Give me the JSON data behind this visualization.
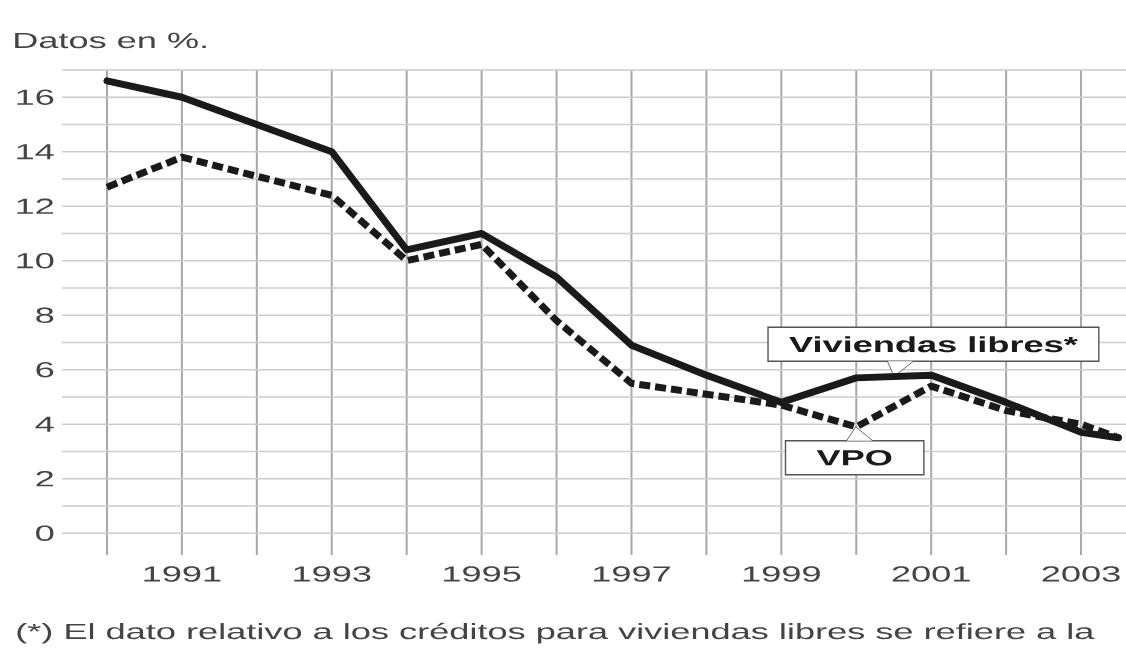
{
  "chart_data": {
    "type": "line",
    "ylabel": "Datos en %.",
    "x": [
      1990,
      1991,
      1992,
      1993,
      1994,
      1995,
      1996,
      1997,
      1998,
      1999,
      2000,
      2001,
      2002,
      2003,
      2003.5
    ],
    "series": [
      {
        "name": "Viviendas libres*",
        "color": "#1a1a1a",
        "line_style": "solid",
        "values": [
          16.6,
          16.0,
          15.0,
          14.0,
          10.4,
          11.0,
          9.4,
          6.9,
          5.8,
          4.8,
          5.7,
          5.8,
          4.8,
          3.7,
          3.5
        ]
      },
      {
        "name": "VPO",
        "color": "#1a1a1a",
        "line_style": "dashed",
        "values": [
          12.7,
          13.8,
          13.1,
          12.4,
          10.0,
          10.6,
          7.8,
          5.5,
          5.1,
          4.7,
          3.9,
          5.4,
          4.5,
          4.0,
          3.5
        ]
      }
    ],
    "xlim": [
      1989.4,
      2003.6
    ],
    "ylim": [
      -0.8,
      17
    ],
    "xticks": [
      {
        "value": 1990,
        "label": null
      },
      1991,
      {
        "value": 1992,
        "label": null
      },
      1993,
      {
        "value": 1994,
        "label": null
      },
      1995,
      {
        "value": 1996,
        "label": null
      },
      1997,
      {
        "value": 1998,
        "label": null
      },
      1999,
      {
        "value": 2000,
        "label": null
      },
      2001,
      {
        "value": 2002,
        "label": null
      },
      2003
    ],
    "yticks": [
      0,
      {
        "value": 1,
        "label": null
      },
      2,
      {
        "value": 3,
        "label": null
      },
      4,
      {
        "value": 5,
        "label": null
      },
      6,
      {
        "value": 7,
        "label": null
      },
      8,
      {
        "value": 9,
        "label": null
      },
      10,
      {
        "value": 11,
        "label": null
      },
      12,
      {
        "value": 13,
        "label": null
      },
      14,
      {
        "value": 15,
        "label": null
      },
      16,
      {
        "value": 17,
        "label": null
      }
    ],
    "grid": true,
    "annotations": [
      "(*) El dato relativo a los créditos para viviendas libres se refiere a la"
    ]
  }
}
